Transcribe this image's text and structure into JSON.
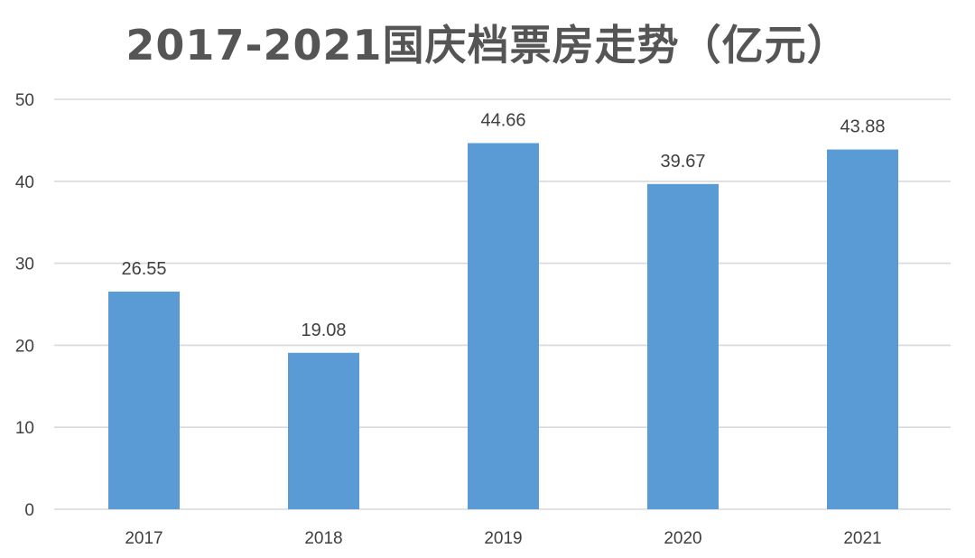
{
  "chart_data": {
    "type": "bar",
    "title": "2017-2021国庆档票房走势（亿元）",
    "categories": [
      "2017",
      "2018",
      "2019",
      "2020",
      "2021"
    ],
    "values": [
      26.55,
      19.08,
      44.66,
      39.67,
      43.88
    ],
    "data_labels": [
      "26.55",
      "19.08",
      "44.66",
      "39.67",
      "43.88"
    ],
    "ylim": [
      0,
      50
    ],
    "y_ticks": [
      0,
      10,
      20,
      30,
      40,
      50
    ],
    "xlabel": "",
    "ylabel": "",
    "grid": true,
    "legend": "none",
    "bar_color": "#5B9BD5",
    "grid_color": "#D9D9D9"
  }
}
